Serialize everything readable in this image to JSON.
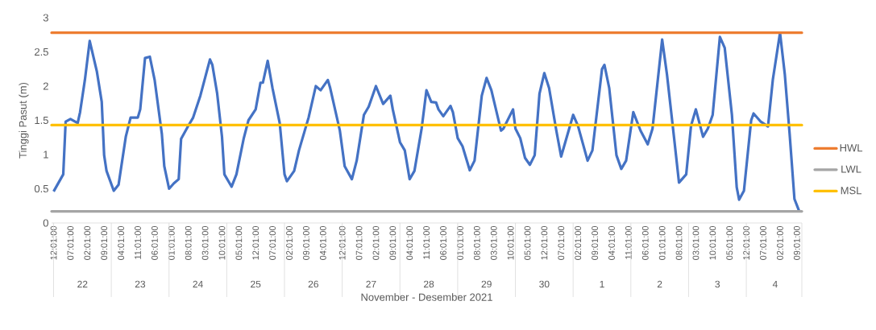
{
  "chart_data": {
    "type": "line",
    "xlabel": "November - Desember 2021",
    "ylabel": "Tinggi Pasut (m)",
    "xlim": [
      "2021-11-21T23:10",
      "2021-12-04T23:06"
    ],
    "ylim": [
      0,
      3
    ],
    "yticks": [
      0,
      0.5,
      1,
      1.5,
      2,
      2.5,
      3
    ],
    "xticks": [
      {
        "value": "2021-11-22T00:01",
        "label": "12:01:00"
      },
      {
        "value": "2021-11-22T07:01",
        "label": "07:01:00"
      },
      {
        "value": "2021-11-22T14:01",
        "label": "02:01:00"
      },
      {
        "value": "2021-11-22T21:01",
        "label": "09:01:00"
      },
      {
        "value": "2021-11-23T04:01",
        "label": "04:01:00"
      },
      {
        "value": "2021-11-23T11:01",
        "label": "11:01:00"
      },
      {
        "value": "2021-11-23T18:01",
        "label": "06:01:00"
      },
      {
        "value": "2021-11-24T01:01",
        "label": "01:01:00"
      },
      {
        "value": "2021-11-24T08:01",
        "label": "08:01:00"
      },
      {
        "value": "2021-11-24T15:01",
        "label": "03:01:00"
      },
      {
        "value": "2021-11-24T22:01",
        "label": "10:01:00"
      },
      {
        "value": "2021-11-25T05:01",
        "label": "05:01:00"
      },
      {
        "value": "2021-11-25T12:01",
        "label": "12:01:00"
      },
      {
        "value": "2021-11-25T19:01",
        "label": "07:01:00"
      },
      {
        "value": "2021-11-26T02:01",
        "label": "02:01:00"
      },
      {
        "value": "2021-11-26T09:01",
        "label": "09:01:00"
      },
      {
        "value": "2021-11-26T16:01",
        "label": "04:01:00"
      },
      {
        "value": "2021-11-27T00:01",
        "label": "12:01:00"
      },
      {
        "value": "2021-11-27T07:01",
        "label": "07:01:00"
      },
      {
        "value": "2021-11-27T14:01",
        "label": "02:01:00"
      },
      {
        "value": "2021-11-27T21:01",
        "label": "09:01:00"
      },
      {
        "value": "2021-11-28T04:01",
        "label": "04:01:00"
      },
      {
        "value": "2021-11-28T11:01",
        "label": "11:01:00"
      },
      {
        "value": "2021-11-28T18:01",
        "label": "06:01:00"
      },
      {
        "value": "2021-11-29T01:01",
        "label": "01:01:00"
      },
      {
        "value": "2021-11-29T08:01",
        "label": "08:01:00"
      },
      {
        "value": "2021-11-29T15:01",
        "label": "03:01:00"
      },
      {
        "value": "2021-11-29T22:01",
        "label": "10:01:00"
      },
      {
        "value": "2021-11-30T05:01",
        "label": "05:01:00"
      },
      {
        "value": "2021-11-30T12:01",
        "label": "12:01:00"
      },
      {
        "value": "2021-11-30T19:01",
        "label": "07:01:00"
      },
      {
        "value": "2021-12-01T02:01",
        "label": "02:01:00"
      },
      {
        "value": "2021-12-01T09:01",
        "label": "09:01:00"
      },
      {
        "value": "2021-12-01T16:01",
        "label": "04:01:00"
      },
      {
        "value": "2021-12-01T23:01",
        "label": "11:01:00"
      },
      {
        "value": "2021-12-02T06:01",
        "label": "06:01:00"
      },
      {
        "value": "2021-12-02T13:01",
        "label": "01:01:00"
      },
      {
        "value": "2021-12-02T20:01",
        "label": "08:01:00"
      },
      {
        "value": "2021-12-03T03:01",
        "label": "03:01:00"
      },
      {
        "value": "2021-12-03T10:01",
        "label": "10:01:00"
      },
      {
        "value": "2021-12-03T17:01",
        "label": "05:01:00"
      },
      {
        "value": "2021-12-04T00:01",
        "label": "12:01:00"
      },
      {
        "value": "2021-12-04T07:01",
        "label": "07:01:00"
      },
      {
        "value": "2021-12-04T14:01",
        "label": "02:01:00"
      },
      {
        "value": "2021-12-04T21:01",
        "label": "09:01:00"
      }
    ],
    "series": [
      {
        "color": "#4472c4",
        "x": [
          "2021-11-22T00:01",
          "2021-11-22T04:01",
          "2021-11-22T05:01",
          "2021-11-22T07:01",
          "2021-11-22T10:01",
          "2021-11-22T11:01",
          "2021-11-22T13:01",
          "2021-11-22T15:01",
          "2021-11-22T18:01",
          "2021-11-22T20:01",
          "2021-11-22T21:01",
          "2021-11-22T22:01",
          "2021-11-23T01:01",
          "2021-11-23T03:01",
          "2021-11-23T06:01",
          "2021-11-23T08:01",
          "2021-11-23T11:01",
          "2021-11-23T12:01",
          "2021-11-23T14:01",
          "2021-11-23T16:01",
          "2021-11-23T18:01",
          "2021-11-23T21:01",
          "2021-11-23T22:01",
          "2021-11-24T00:01",
          "2021-11-24T02:01",
          "2021-11-24T04:01",
          "2021-11-24T05:01",
          "2021-11-24T08:01",
          "2021-11-24T10:01",
          "2021-11-24T13:01",
          "2021-11-24T17:01",
          "2021-11-24T18:01",
          "2021-11-24T20:01",
          "2021-11-24T22:01",
          "2021-11-24T23:01",
          "2021-11-25T02:01",
          "2021-11-25T04:01",
          "2021-11-25T07:01",
          "2021-11-25T09:01",
          "2021-11-25T12:01",
          "2021-11-25T14:01",
          "2021-11-25T15:01",
          "2021-11-25T17:01",
          "2021-11-25T19:01",
          "2021-11-25T22:01",
          "2021-11-26T00:01",
          "2021-11-26T01:01",
          "2021-11-26T03:01",
          "2021-11-26T04:01",
          "2021-11-26T06:01",
          "2021-11-26T10:01",
          "2021-11-26T13:01",
          "2021-11-26T15:01",
          "2021-11-26T18:01",
          "2021-11-26T19:01",
          "2021-11-26T23:01",
          "2021-11-27T01:01",
          "2021-11-27T04:01",
          "2021-11-27T06:01",
          "2021-11-27T09:01",
          "2021-11-27T11:01",
          "2021-11-27T14:01",
          "2021-11-27T17:01",
          "2021-11-27T20:01",
          "2021-11-27T21:01",
          "2021-11-28T00:01",
          "2021-11-28T02:01",
          "2021-11-28T04:01",
          "2021-11-28T06:01",
          "2021-11-28T09:01",
          "2021-11-28T11:01",
          "2021-11-28T13:01",
          "2021-11-28T15:01",
          "2021-11-28T16:01",
          "2021-11-28T18:01",
          "2021-11-28T21:01",
          "2021-11-28T22:01",
          "2021-11-29T00:01",
          "2021-11-29T02:01",
          "2021-11-29T05:01",
          "2021-11-29T07:01",
          "2021-11-29T10:01",
          "2021-11-29T12:01",
          "2021-11-29T14:01",
          "2021-11-29T18:01",
          "2021-11-29T19:01",
          "2021-11-29T23:01",
          "2021-11-30T00:01",
          "2021-11-30T02:01",
          "2021-11-30T04:01",
          "2021-11-30T06:01",
          "2021-11-30T08:01",
          "2021-11-30T10:01",
          "2021-11-30T12:01",
          "2021-11-30T14:01",
          "2021-11-30T17:01",
          "2021-11-30T19:01",
          "2021-12-01T00:01",
          "2021-12-01T02:01",
          "2021-12-01T06:01",
          "2021-12-01T08:01",
          "2021-12-01T12:01",
          "2021-12-01T13:01",
          "2021-12-01T15:01",
          "2021-12-01T18:01",
          "2021-12-01T20:01",
          "2021-12-01T22:01",
          "2021-12-02T01:01",
          "2021-12-02T04:01",
          "2021-12-02T07:01",
          "2021-12-02T09:01",
          "2021-12-02T13:01",
          "2021-12-02T15:01",
          "2021-12-02T18:01",
          "2021-12-02T20:01",
          "2021-12-02T23:01",
          "2021-12-03T01:01",
          "2021-12-03T03:01",
          "2021-12-03T06:01",
          "2021-12-03T08:01",
          "2021-12-03T10:01",
          "2021-12-03T13:01",
          "2021-12-03T15:01",
          "2021-12-03T18:01",
          "2021-12-03T20:01",
          "2021-12-03T21:01",
          "2021-12-03T23:01",
          "2021-12-04T02:01",
          "2021-12-04T03:01",
          "2021-12-04T06:01",
          "2021-12-04T09:01",
          "2021-12-04T11:01",
          "2021-12-04T14:01",
          "2021-12-04T16:01",
          "2021-12-04T18:01",
          "2021-12-04T20:01",
          "2021-12-04T22:01"
        ],
        "values": [
          0.46,
          0.71,
          1.48,
          1.52,
          1.46,
          1.62,
          2.09,
          2.66,
          2.21,
          1.77,
          0.99,
          0.76,
          0.47,
          0.56,
          1.26,
          1.54,
          1.54,
          1.66,
          2.41,
          2.43,
          2.09,
          1.3,
          0.83,
          0.5,
          0.58,
          0.64,
          1.23,
          1.42,
          1.54,
          1.86,
          2.39,
          2.31,
          1.89,
          1.26,
          0.71,
          0.53,
          0.71,
          1.23,
          1.5,
          1.66,
          2.05,
          2.05,
          2.37,
          1.97,
          1.46,
          0.71,
          0.61,
          0.71,
          0.76,
          1.06,
          1.54,
          2.0,
          1.94,
          2.09,
          1.97,
          1.35,
          0.83,
          0.64,
          0.91,
          1.58,
          1.7,
          2.0,
          1.74,
          1.86,
          1.66,
          1.18,
          1.06,
          0.64,
          0.76,
          1.38,
          1.94,
          1.77,
          1.76,
          1.66,
          1.56,
          1.71,
          1.62,
          1.24,
          1.12,
          0.77,
          0.91,
          1.86,
          2.12,
          1.94,
          1.35,
          1.38,
          1.66,
          1.38,
          1.24,
          0.95,
          0.85,
          0.99,
          1.89,
          2.19,
          1.97,
          1.35,
          0.97,
          1.58,
          1.42,
          0.91,
          1.06,
          2.25,
          2.31,
          1.97,
          0.99,
          0.79,
          0.91,
          1.62,
          1.35,
          1.15,
          1.38,
          2.68,
          2.17,
          1.23,
          0.59,
          0.71,
          1.42,
          1.66,
          1.26,
          1.38,
          1.58,
          2.72,
          2.56,
          1.58,
          0.52,
          0.34,
          0.47,
          1.5,
          1.6,
          1.48,
          1.41,
          2.09,
          2.78,
          2.17,
          1.3,
          0.35,
          0.17
        ]
      }
    ],
    "ref_lines": [
      {
        "axis": "y",
        "value": 2.78,
        "label": "HWL",
        "color": "#ed7d31"
      },
      {
        "axis": "y",
        "value": 0.17,
        "label": "LWL",
        "color": "#a5a5a5"
      },
      {
        "axis": "y",
        "value": 1.43,
        "label": "MSL",
        "color": "#ffc000"
      }
    ],
    "annotations": [
      "22",
      "23",
      "24",
      "25",
      "26",
      "27",
      "28",
      "29",
      "30",
      "1",
      "2",
      "3",
      "4"
    ],
    "legend": "right",
    "grid": false,
    "marker": "none",
    "line_style": "solid"
  }
}
